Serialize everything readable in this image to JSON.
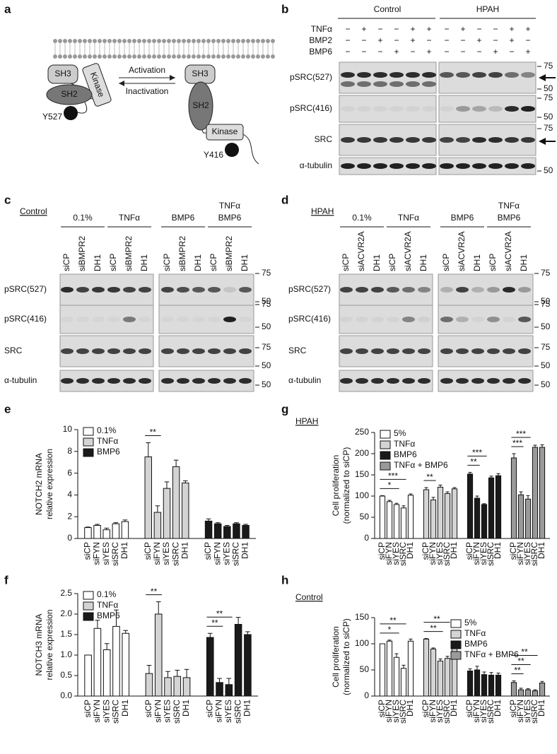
{
  "panel_labels": [
    "a",
    "b",
    "c",
    "d",
    "e",
    "f",
    "g",
    "h"
  ],
  "diagram": {
    "inactive": {
      "sh3": "SH3",
      "kinase": "Kinase",
      "sh2": "SH2",
      "phospho": "P",
      "residue": "Y527"
    },
    "activation": "Activation",
    "inactivation": "Inactivation",
    "active": {
      "sh3": "SH3",
      "sh2": "SH2",
      "kinase": "Kinase",
      "phospho": "P",
      "residue": "Y416"
    }
  },
  "blot_b": {
    "headers": [
      "Control",
      "HPAH"
    ],
    "treatments": [
      {
        "name": "TNFα",
        "signs": [
          "−",
          "+",
          "−",
          "−",
          "+",
          "+",
          "−",
          "+",
          "−",
          "−",
          "+",
          "+"
        ]
      },
      {
        "name": "BMP2",
        "signs": [
          "−",
          "−",
          "+",
          "−",
          "+",
          "−",
          "−",
          "−",
          "+",
          "−",
          "+",
          "−"
        ]
      },
      {
        "name": "BMP6",
        "signs": [
          "−",
          "−",
          "−",
          "+",
          "−",
          "+",
          "−",
          "−",
          "−",
          "+",
          "−",
          "+"
        ]
      }
    ],
    "rows": [
      {
        "label": "pSRC(527)",
        "markers": [
          75,
          50
        ]
      },
      {
        "label": "pSRC(416)",
        "markers": [
          75,
          50
        ]
      },
      {
        "label": "SRC",
        "markers": [
          75
        ]
      },
      {
        "label": "α-tubulin",
        "markers": [
          50
        ]
      }
    ]
  },
  "blot_c": {
    "title": "Control",
    "groups": [
      "0.1%",
      "TNFα",
      "BMP6",
      [
        "TNFα",
        "BMP6"
      ]
    ],
    "lanes": [
      "siCP",
      "siBMPR2",
      "DH1"
    ],
    "rows": [
      {
        "label": "pSRC(527)",
        "markers": [
          75,
          50
        ]
      },
      {
        "label": "pSRC(416)",
        "markers": [
          75,
          50
        ]
      },
      {
        "label": "SRC",
        "markers": [
          75,
          50
        ]
      },
      {
        "label": "α-tubulin",
        "markers": [
          50
        ]
      }
    ]
  },
  "blot_d": {
    "title": "HPAH",
    "groups": [
      "0.1%",
      "TNFα",
      "BMP6",
      [
        "TNFα",
        "BMP6"
      ]
    ],
    "lanes": [
      "siCP",
      "siACVR2A",
      "DH1"
    ],
    "rows": [
      {
        "label": "pSRC(527)",
        "markers": [
          75,
          50
        ]
      },
      {
        "label": "pSRC(416)",
        "markers": [
          75,
          50
        ]
      },
      {
        "label": "SRC",
        "markers": [
          75,
          50
        ]
      },
      {
        "label": "α-tubulin",
        "markers": [
          50
        ]
      }
    ]
  },
  "chart_data": [
    {
      "type": "bar",
      "ylabel": [
        "NOTCH2 mRNA",
        "relative expression"
      ],
      "categories": [
        "siCP",
        "siFYN",
        "siYES",
        "siSRC",
        "DH1"
      ],
      "series": [
        {
          "name": "0.1%",
          "color": "#ffffff",
          "values": [
            1.0,
            1.2,
            0.8,
            1.35,
            1.55
          ],
          "errors": [
            0.05,
            0.1,
            0.15,
            0.1,
            0.15
          ]
        },
        {
          "name": "TNFα",
          "color": "#d4d4d4",
          "values": [
            7.5,
            2.4,
            4.6,
            6.6,
            5.1
          ],
          "errors": [
            1.3,
            0.6,
            0.6,
            0.6,
            0.2
          ]
        },
        {
          "name": "BMP6",
          "color": "#1a1a1a",
          "values": [
            1.6,
            1.35,
            1.1,
            1.35,
            1.2
          ],
          "errors": [
            0.2,
            0.1,
            0.1,
            0.1,
            0.1
          ]
        }
      ],
      "ylim": [
        0,
        10
      ],
      "yticks": [
        0,
        2,
        4,
        6,
        8,
        10
      ],
      "legend": "upper left",
      "annotations": [
        "**"
      ]
    },
    {
      "type": "bar",
      "ylabel": [
        "NOTCH3 mRNA",
        "relative expression"
      ],
      "categories": [
        "siCP",
        "siFYN",
        "siYES",
        "siSRC",
        "DH1"
      ],
      "series": [
        {
          "name": "0.1%",
          "color": "#ffffff",
          "values": [
            1.0,
            1.65,
            1.13,
            1.7,
            1.53
          ],
          "errors": [
            0.0,
            0.2,
            0.15,
            0.4,
            0.07
          ]
        },
        {
          "name": "TNFα",
          "color": "#d4d4d4",
          "values": [
            0.55,
            2.0,
            0.45,
            0.48,
            0.45
          ],
          "errors": [
            0.2,
            0.3,
            0.15,
            0.15,
            0.2
          ]
        },
        {
          "name": "BMP6",
          "color": "#1a1a1a",
          "values": [
            1.43,
            0.33,
            0.28,
            1.75,
            1.5
          ],
          "errors": [
            0.1,
            0.1,
            0.15,
            0.17,
            0.07
          ]
        }
      ],
      "ylim": [
        0,
        2.5
      ],
      "yticks": [
        {
          "value": 0,
          "label": "0.0"
        },
        0.5,
        {
          "value": 1,
          "label": "1.0"
        },
        1.5,
        {
          "value": 2,
          "label": "2.0"
        },
        2.5
      ],
      "legend": "upper left",
      "annotations": [
        "**",
        "**",
        "**"
      ]
    },
    {
      "type": "bar",
      "title": "HPAH",
      "ylabel": [
        "Cell proliferation",
        "(normalized to siCP)"
      ],
      "categories": [
        "siCP",
        "siFYN",
        "siYES",
        "siSRC",
        "DH1"
      ],
      "series": [
        {
          "name": "5%",
          "color": "#ffffff",
          "values": [
            100,
            87,
            80,
            72,
            102
          ],
          "errors": [
            1,
            3,
            3,
            5,
            3
          ]
        },
        {
          "name": "TNFα",
          "color": "#d4d4d4",
          "values": [
            115,
            91,
            121,
            106,
            117
          ],
          "errors": [
            5,
            6,
            5,
            4,
            3
          ]
        },
        {
          "name": "BMP6",
          "color": "#1a1a1a",
          "values": [
            152,
            95,
            80,
            143,
            148
          ],
          "errors": [
            4,
            5,
            2,
            4,
            5
          ]
        },
        {
          "name": "TNFα + BMP6",
          "color": "#9a9a9a",
          "values": [
            190,
            103,
            93,
            215,
            215
          ],
          "errors": [
            10,
            7,
            8,
            5,
            6
          ]
        }
      ],
      "ylim": [
        0,
        250
      ],
      "yticks": [
        0,
        50,
        100,
        150,
        200,
        250
      ],
      "legend": "upper left",
      "annotations": [
        "***",
        "*",
        "**",
        "***",
        "**",
        "***",
        "***"
      ]
    },
    {
      "type": "bar",
      "title": "Control",
      "ylabel": [
        "Cell proliferation",
        "(normalized to siCP)"
      ],
      "categories": [
        "siCP",
        "siFYN",
        "siYES",
        "siSRC",
        "DH1"
      ],
      "series": [
        {
          "name": "5%",
          "color": "#ffffff",
          "values": [
            100,
            105,
            74,
            53,
            105
          ],
          "errors": [
            0,
            2,
            7,
            6,
            4
          ]
        },
        {
          "name": "TNFα",
          "color": "#d4d4d4",
          "values": [
            109,
            90,
            67,
            72,
            95
          ],
          "errors": [
            1,
            2,
            4,
            4,
            4
          ]
        },
        {
          "name": "BMP6",
          "color": "#1a1a1a",
          "values": [
            48,
            50,
            41,
            40,
            40
          ],
          "errors": [
            4,
            7,
            5,
            5,
            4
          ]
        },
        {
          "name": "TNFα + BMP6",
          "color": "#9a9a9a",
          "values": [
            26,
            12,
            12,
            10,
            25
          ],
          "errors": [
            3,
            3,
            2,
            2,
            3
          ]
        }
      ],
      "ylim": [
        0,
        150
      ],
      "yticks": [
        0,
        50,
        100,
        150
      ],
      "legend": "upper right",
      "annotations": [
        "**",
        "*",
        "**",
        "**",
        "**",
        "**",
        "**"
      ]
    }
  ]
}
